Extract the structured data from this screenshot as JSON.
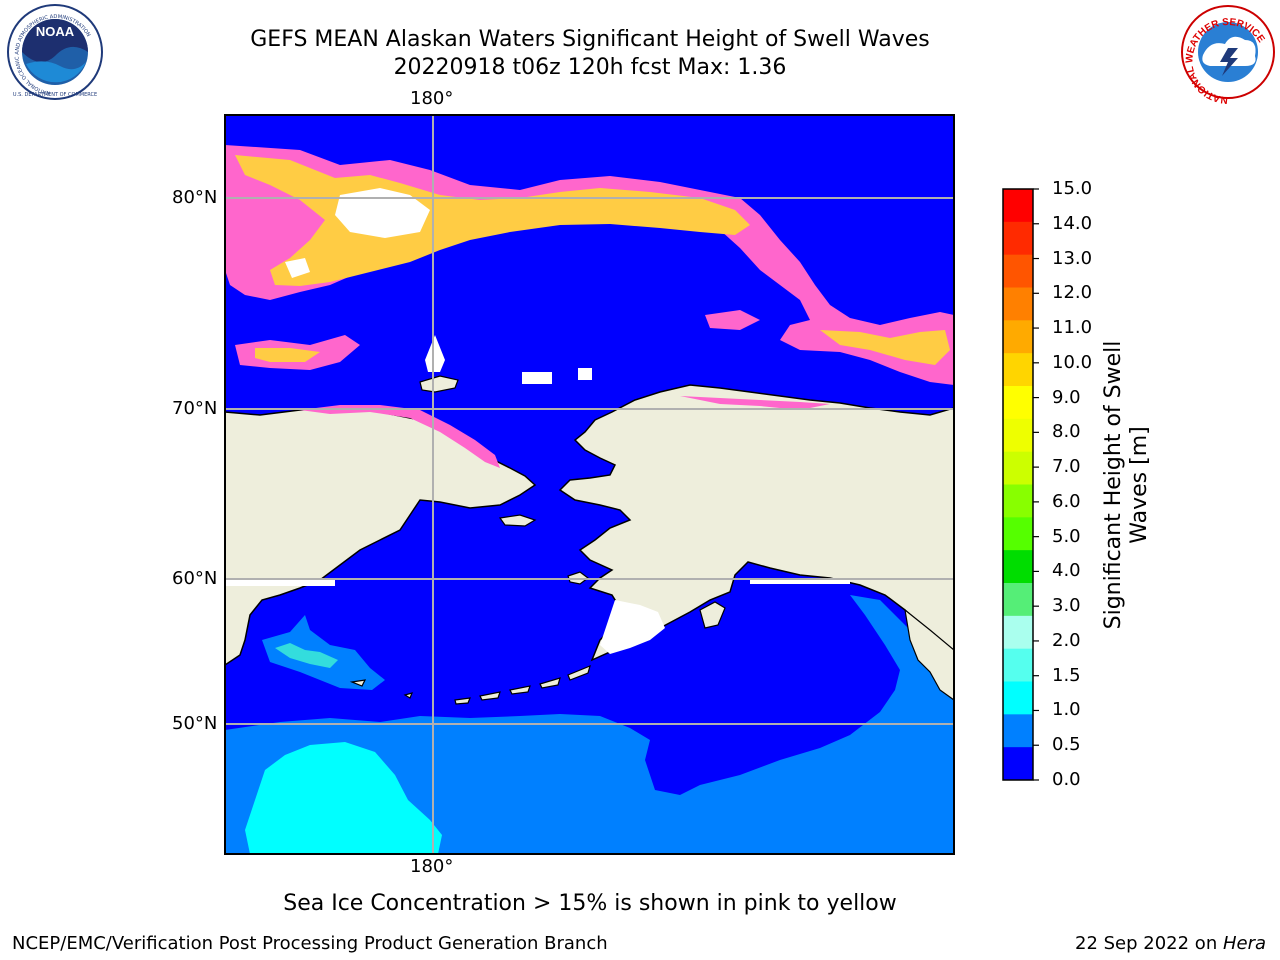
{
  "title": {
    "line1": "GEFS MEAN Alaskan Waters Significant Height of Swell Waves",
    "line2": "20220918 t06z 120h fcst   Max: 1.36"
  },
  "map": {
    "lon_label_top": "180°",
    "lon_label_bottom": "180°",
    "lat_labels": [
      "80°N",
      "70°N",
      "60°N",
      "50°N"
    ],
    "ocean_color": "#0000ff",
    "land_color": "#eeeedc"
  },
  "colorbar": {
    "title_line1": "Significant Height of Swell",
    "title_line2": "Waves [m]",
    "ticks": [
      "15.0",
      "14.0",
      "13.0",
      "12.0",
      "11.0",
      "10.0",
      "9.0",
      "8.0",
      "7.0",
      "6.0",
      "5.0",
      "4.0",
      "3.0",
      "2.0",
      "1.5",
      "1.0",
      "0.5",
      "0.0"
    ],
    "colors_top_to_bottom": [
      "#ff0000",
      "#ff2a00",
      "#ff5500",
      "#ff8000",
      "#ffaa00",
      "#ffd500",
      "#ffff00",
      "#eeff00",
      "#ccff00",
      "#88ff00",
      "#55ff00",
      "#00dd00",
      "#55ee77",
      "#aaffee",
      "#55ffee",
      "#00ffff",
      "#0080ff",
      "#0000ff"
    ]
  },
  "note": "Sea Ice Concentration > 15% is shown in pink to yellow",
  "footer": {
    "left": "NCEP/EMC/Verification Post Processing Product Generation Branch",
    "date": "22 Sep 2022 on ",
    "machine": "Hera"
  },
  "logos": {
    "noaa_text": "NOAA",
    "noaa_ring": "NATIONAL OCEANIC AND ATMOSPHERIC ADMINISTRATION",
    "noaa_ring_bottom": "U.S. DEPARTMENT OF COMMERCE",
    "nws_ring": "NATIONAL WEATHER SERVICE"
  }
}
